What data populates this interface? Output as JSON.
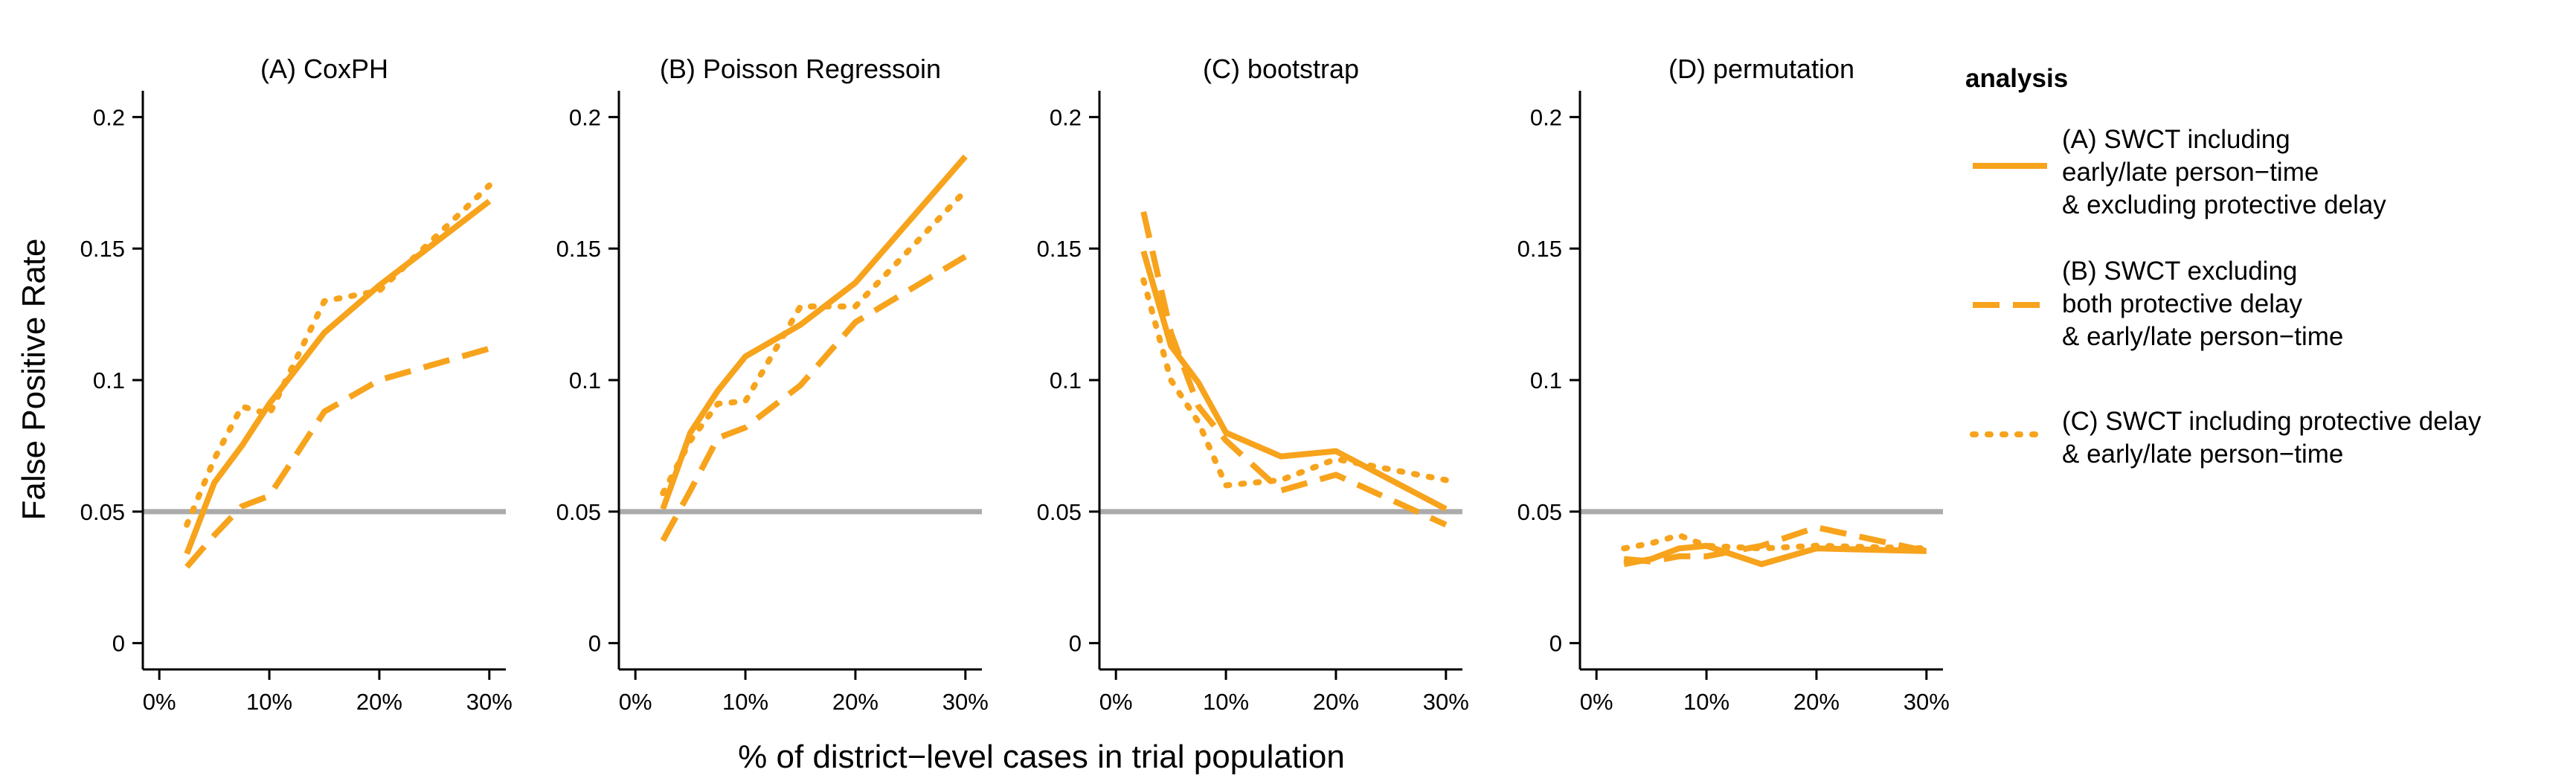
{
  "figure": {
    "ylabel": "False Positive Rate",
    "xlabel": "% of district−level cases in trial population"
  },
  "legend": {
    "title": "analysis",
    "placement": "right",
    "entries": [
      {
        "linetype": "solid",
        "lines": [
          "(A) SWCT including",
          "early/late person−time",
          "& excluding protective delay"
        ]
      },
      {
        "linetype": "dashed",
        "lines": [
          "(B) SWCT excluding",
          "both protective delay",
          "& early/late person−time"
        ]
      },
      {
        "linetype": "dotted",
        "lines": [
          "(C) SWCT including protective delay",
          "& early/late person−time"
        ]
      }
    ]
  },
  "colors": {
    "series": "#F7A31C",
    "reference_line": "#ABABAB",
    "axis": "#000000"
  },
  "chart_data": [
    {
      "type": "line",
      "title": "(A) CoxPH",
      "x": [
        2.5,
        5,
        7.5,
        10,
        15,
        20,
        30
      ],
      "xticks": [
        0,
        10,
        20,
        30
      ],
      "xticklabels": [
        "0%",
        "10%",
        "20%",
        "30%"
      ],
      "yticks": [
        0,
        0.05,
        0.1,
        0.15,
        0.2
      ],
      "yticklabels": [
        "0",
        "0.05",
        "0.1",
        "0.15",
        "0.2"
      ],
      "xlim": [
        -1.5,
        31.5
      ],
      "ylim": [
        -0.01,
        0.21
      ],
      "reference_line": 0.05,
      "series": [
        {
          "name": "(A) SWCT including early/late person−time & excluding protective delay",
          "linetype": "solid",
          "values": [
            0.034,
            0.061,
            0.075,
            0.091,
            0.118,
            0.136,
            0.168
          ]
        },
        {
          "name": "(B) SWCT excluding both protective delay & early/late person−time",
          "linetype": "dashed",
          "values": [
            0.029,
            0.041,
            0.052,
            0.056,
            0.088,
            0.1,
            0.112
          ]
        },
        {
          "name": "(C) SWCT including protective delay & early/late person−time",
          "linetype": "dotted",
          "values": [
            0.045,
            0.07,
            0.09,
            0.087,
            0.13,
            0.134,
            0.174
          ]
        }
      ]
    },
    {
      "type": "line",
      "title": "(B) Poisson Regressoin",
      "x": [
        2.5,
        5,
        7.5,
        10,
        15,
        20,
        30
      ],
      "xticks": [
        0,
        10,
        20,
        30
      ],
      "xticklabels": [
        "0%",
        "10%",
        "20%",
        "30%"
      ],
      "yticks": [
        0,
        0.05,
        0.1,
        0.15,
        0.2
      ],
      "yticklabels": [
        "0",
        "0.05",
        "0.1",
        "0.15",
        "0.2"
      ],
      "xlim": [
        -1.5,
        31.5
      ],
      "ylim": [
        -0.01,
        0.21
      ],
      "reference_line": 0.05,
      "series": [
        {
          "name": "(A) SWCT including early/late person−time & excluding protective delay",
          "linetype": "solid",
          "values": [
            0.051,
            0.08,
            0.096,
            0.109,
            0.121,
            0.137,
            0.185
          ]
        },
        {
          "name": "(B) SWCT excluding both protective delay & early/late person−time",
          "linetype": "dashed",
          "values": [
            0.039,
            0.058,
            0.078,
            0.082,
            0.098,
            0.122,
            0.147
          ]
        },
        {
          "name": "(C) SWCT including protective delay & early/late person−time",
          "linetype": "dotted",
          "values": [
            0.057,
            0.077,
            0.091,
            0.092,
            0.128,
            0.128,
            0.172
          ]
        }
      ]
    },
    {
      "type": "line",
      "title": "(C) bootstrap",
      "x": [
        2.5,
        5,
        7.5,
        10,
        15,
        20,
        30
      ],
      "xticks": [
        0,
        10,
        20,
        30
      ],
      "xticklabels": [
        "0%",
        "10%",
        "20%",
        "30%"
      ],
      "yticks": [
        0,
        0.05,
        0.1,
        0.15,
        0.2
      ],
      "yticklabels": [
        "0",
        "0.05",
        "0.1",
        "0.15",
        "0.2"
      ],
      "xlim": [
        -1.5,
        31.5
      ],
      "ylim": [
        -0.01,
        0.21
      ],
      "reference_line": 0.05,
      "series": [
        {
          "name": "(A) SWCT including early/late person−time & excluding protective delay",
          "linetype": "solid",
          "values": [
            0.149,
            0.113,
            0.099,
            0.08,
            0.071,
            0.073,
            0.051
          ]
        },
        {
          "name": "(B) SWCT excluding both protective delay & early/late person−time",
          "linetype": "dashed",
          "values": [
            0.164,
            0.118,
            0.09,
            0.077,
            0.058,
            0.064,
            0.045
          ]
        },
        {
          "name": "(C) SWCT including protective delay & early/late person−time",
          "linetype": "dotted",
          "values": [
            0.138,
            0.1,
            0.084,
            0.06,
            0.062,
            0.07,
            0.062
          ]
        }
      ]
    },
    {
      "type": "line",
      "title": "(D) permutation",
      "x": [
        2.5,
        5,
        7.5,
        10,
        15,
        20,
        30
      ],
      "xticks": [
        0,
        10,
        20,
        30
      ],
      "xticklabels": [
        "0%",
        "10%",
        "20%",
        "30%"
      ],
      "yticks": [
        0,
        0.05,
        0.1,
        0.15,
        0.2
      ],
      "yticklabels": [
        "0",
        "0.05",
        "0.1",
        "0.15",
        "0.2"
      ],
      "xlim": [
        -1.5,
        31.5
      ],
      "ylim": [
        -0.01,
        0.21
      ],
      "reference_line": 0.05,
      "series": [
        {
          "name": "(A) SWCT including early/late person−time & excluding protective delay",
          "linetype": "solid",
          "values": [
            0.03,
            0.032,
            0.036,
            0.037,
            0.03,
            0.036,
            0.035
          ]
        },
        {
          "name": "(B) SWCT excluding both protective delay & early/late person−time",
          "linetype": "dashed",
          "values": [
            0.032,
            0.031,
            0.033,
            0.033,
            0.037,
            0.044,
            0.035
          ]
        },
        {
          "name": "(C) SWCT including protective delay & early/late person−time",
          "linetype": "dotted",
          "values": [
            0.036,
            0.038,
            0.041,
            0.037,
            0.036,
            0.037,
            0.036
          ]
        }
      ]
    }
  ]
}
